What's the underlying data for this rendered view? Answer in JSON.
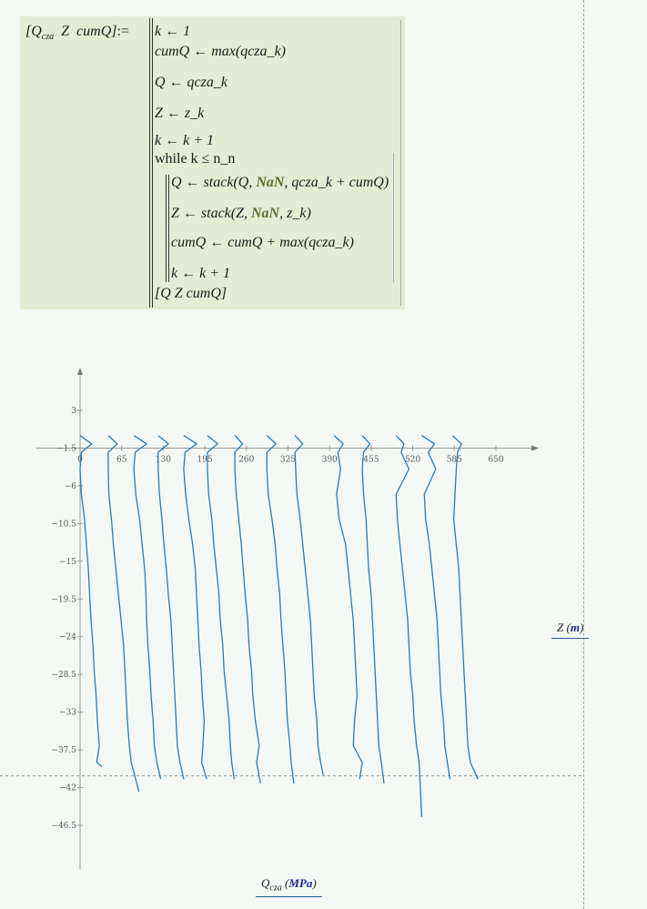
{
  "program": {
    "lhs": "[Qcza  Z  cumQ] :=",
    "lhs_parts": {
      "q": "Q",
      "q_sub": "cza",
      "z": "Z",
      "cum": "cumQ",
      "assign": ":="
    },
    "lines": [
      "k ← 1",
      "cumQ ← max(qcza_k)",
      "Q ← qcza_k",
      "Z ← z_k",
      "k ← k + 1",
      "while k ≤ n_n",
      "Q ← stack(Q, NaN, qcza_k + cumQ)",
      "Z ← stack(Z, NaN, z_k)",
      "cumQ ← cumQ + max(qcza_k)",
      "k ← k + 1",
      "[Q  Z  cumQ]"
    ],
    "nan_keyword": "NaN",
    "nan_color": "#5a6e2a"
  },
  "plot": {
    "xlabel": "Qcza",
    "xlabel_sub": "cza",
    "xlabel_var": "Q",
    "xunit": "MPa",
    "ylabel_var": "Z",
    "yunit": "m",
    "line_color": "#2e7bb0",
    "unit_color": "#1a2a9a"
  },
  "chart_data": {
    "type": "line",
    "xlim": [
      0,
      650
    ],
    "ylim": [
      -46.5,
      3
    ],
    "x_ticks": [
      "0",
      "65",
      "130",
      "195",
      "260",
      "325",
      "390",
      "455",
      "520",
      "585",
      "650"
    ],
    "y_ticks": [
      "3",
      "-1.5",
      "-6",
      "-10.5",
      "-15",
      "-19.5",
      "-24",
      "-28.5",
      "-33",
      "-37.5",
      "-42",
      "-46.5"
    ],
    "x_axis_crosses_y": -1.5,
    "marker_line_z": -40.6,
    "z_grid": [
      0,
      -1,
      -2,
      -4,
      -7,
      -10,
      -13,
      -16,
      -19,
      -22,
      -25,
      -28,
      -31,
      -34,
      -37,
      -39
    ],
    "series": [
      {
        "z_end": -39.5,
        "q": [
          0,
          18,
          2,
          0,
          2,
          7,
          10,
          13,
          15,
          17,
          20,
          22,
          25,
          27,
          30,
          26,
          34
        ]
      },
      {
        "z_end": -42.5,
        "q": [
          44,
          58,
          44,
          44,
          45,
          49,
          52,
          56,
          60,
          64,
          68,
          70,
          72,
          74,
          77,
          80,
          92
        ]
      },
      {
        "z_end": -41,
        "q": [
          84,
          104,
          86,
          84,
          87,
          93,
          97,
          101,
          103,
          104,
          106,
          109,
          111,
          114,
          116,
          120,
          126
        ]
      },
      {
        "z_end": -41,
        "q": [
          122,
          138,
          122,
          122,
          124,
          128,
          131,
          135,
          138,
          142,
          144,
          146,
          148,
          150,
          152,
          156,
          162
        ]
      },
      {
        "z_end": -41,
        "q": [
          162,
          182,
          164,
          162,
          165,
          170,
          176,
          180,
          182,
          184,
          186,
          189,
          191,
          194,
          192,
          190,
          198
        ]
      },
      {
        "z_end": -41,
        "q": [
          199,
          215,
          199,
          199,
          201,
          206,
          209,
          213,
          217,
          219,
          223,
          225,
          229,
          233,
          235,
          237,
          241
        ]
      },
      {
        "z_end": -41.5,
        "q": [
          242,
          254,
          242,
          242,
          244,
          248,
          252,
          255,
          258,
          262,
          264,
          268,
          270,
          274,
          280,
          276,
          282
        ]
      },
      {
        "z_end": -41.5,
        "q": [
          292,
          306,
          292,
          292,
          294,
          300,
          305,
          308,
          312,
          314,
          317,
          320,
          322,
          324,
          328,
          330,
          334
        ]
      },
      {
        "z_end": -40.5,
        "q": [
          336,
          348,
          336,
          337,
          339,
          344,
          348,
          352,
          356,
          360,
          362,
          364,
          366,
          370,
          372,
          376,
          380
        ]
      },
      {
        "z_end": -41,
        "q": [
          397,
          411,
          403,
          407,
          401,
          405,
          415,
          419,
          423,
          427,
          429,
          431,
          433,
          429,
          427,
          441,
          437
        ]
      },
      {
        "z_end": -41.5,
        "q": [
          441,
          453,
          443,
          441,
          443,
          447,
          449,
          451,
          455,
          457,
          459,
          461,
          463,
          465,
          467,
          471,
          475
        ]
      },
      {
        "z_end": -45.5,
        "q": [
          494,
          506,
          502,
          514,
          494,
          496,
          500,
          504,
          508,
          512,
          514,
          516,
          520,
          522,
          526,
          530,
          534
        ]
      },
      {
        "z_end": -41,
        "q": [
          534,
          554,
          544,
          556,
          538,
          540,
          546,
          550,
          554,
          558,
          560,
          562,
          564,
          568,
          570,
          574,
          578
        ]
      },
      {
        "z_end": -41,
        "q": [
          582,
          596,
          590,
          588,
          586,
          584,
          588,
          592,
          594,
          596,
          598,
          600,
          602,
          604,
          606,
          610,
          622
        ]
      }
    ]
  }
}
